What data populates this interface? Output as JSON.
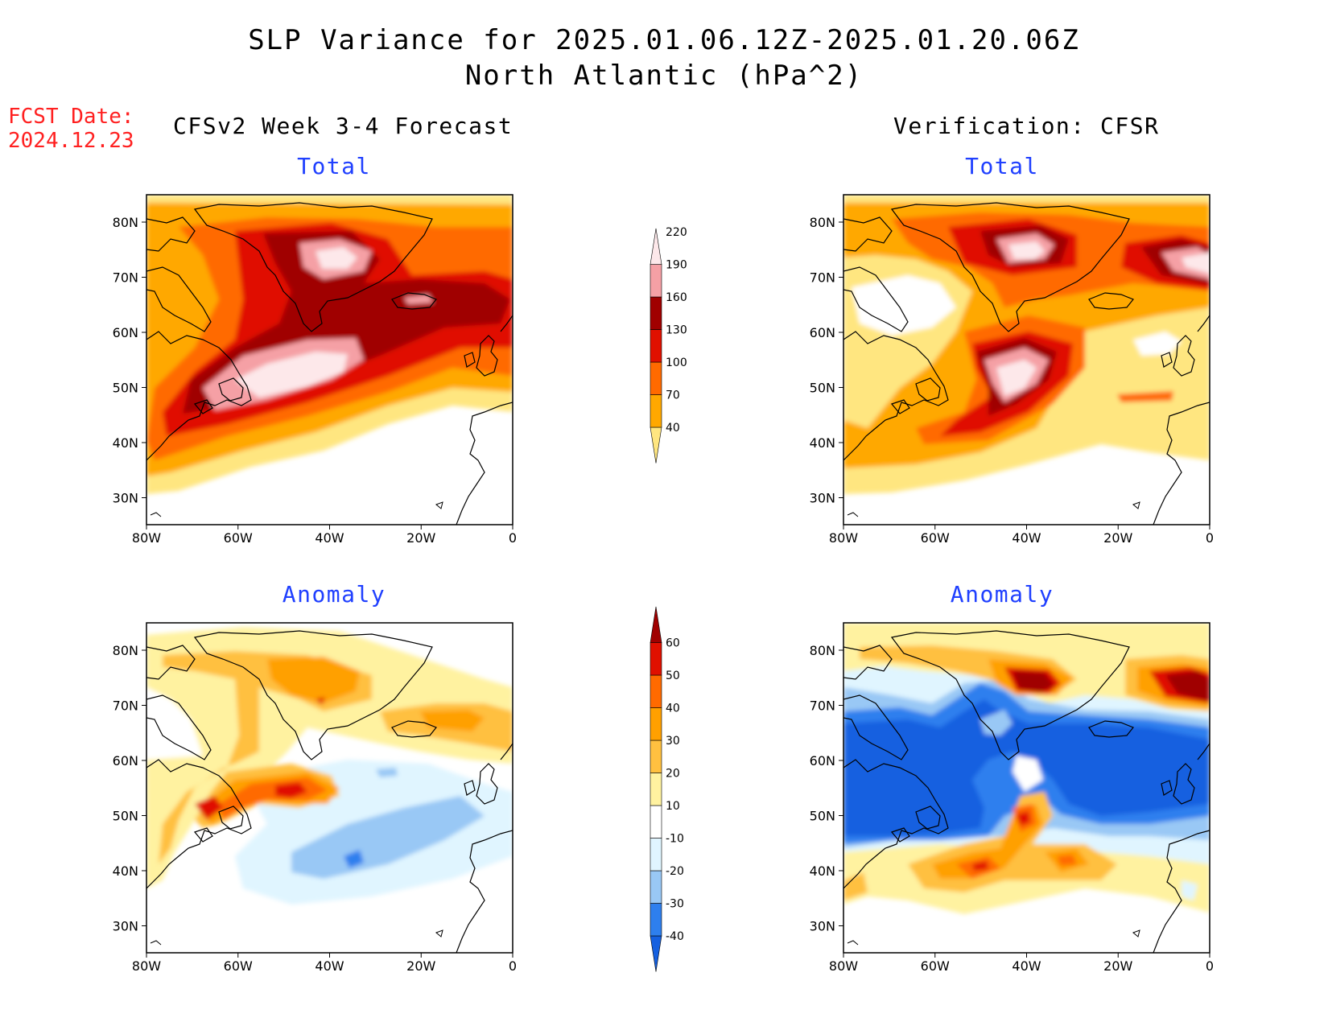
{
  "title_line1": "SLP Variance for 2025.01.06.12Z-2025.01.20.06Z",
  "title_line2": "North Atlantic (hPa^2)",
  "fcst_label": "FCST Date:",
  "fcst_date": "2024.12.23",
  "left_header": "CFSv2 Week 3-4 Forecast",
  "right_header": "Verification: CFSR",
  "panel_total": "Total",
  "panel_anomaly": "Anomaly",
  "lat_ticks": [
    "80N",
    "70N",
    "60N",
    "50N",
    "40N",
    "30N"
  ],
  "lon_ticks": [
    "80W",
    "60W",
    "40W",
    "20W",
    "0"
  ],
  "colorbar_total": {
    "levels": [
      "40",
      "70",
      "100",
      "130",
      "160",
      "190",
      "220"
    ],
    "colors": [
      "#ffe680",
      "#ffa800",
      "#ff6a00",
      "#e01000",
      "#a00000",
      "#f5a0a5",
      "#fde8ea"
    ]
  },
  "colorbar_anomaly": {
    "levels": [
      "-40",
      "-30",
      "-20",
      "-10",
      "10",
      "20",
      "30",
      "40",
      "50",
      "60"
    ],
    "colors": [
      "#1560e0",
      "#2e7fee",
      "#99c8f5",
      "#e0f5ff",
      "#ffffff",
      "#fff2a0",
      "#ffc040",
      "#ffa000",
      "#ff6a00",
      "#e01000",
      "#a00000"
    ]
  },
  "colors": {
    "title_red": "#ff2020",
    "subtitle_blue": "#2040ff"
  }
}
